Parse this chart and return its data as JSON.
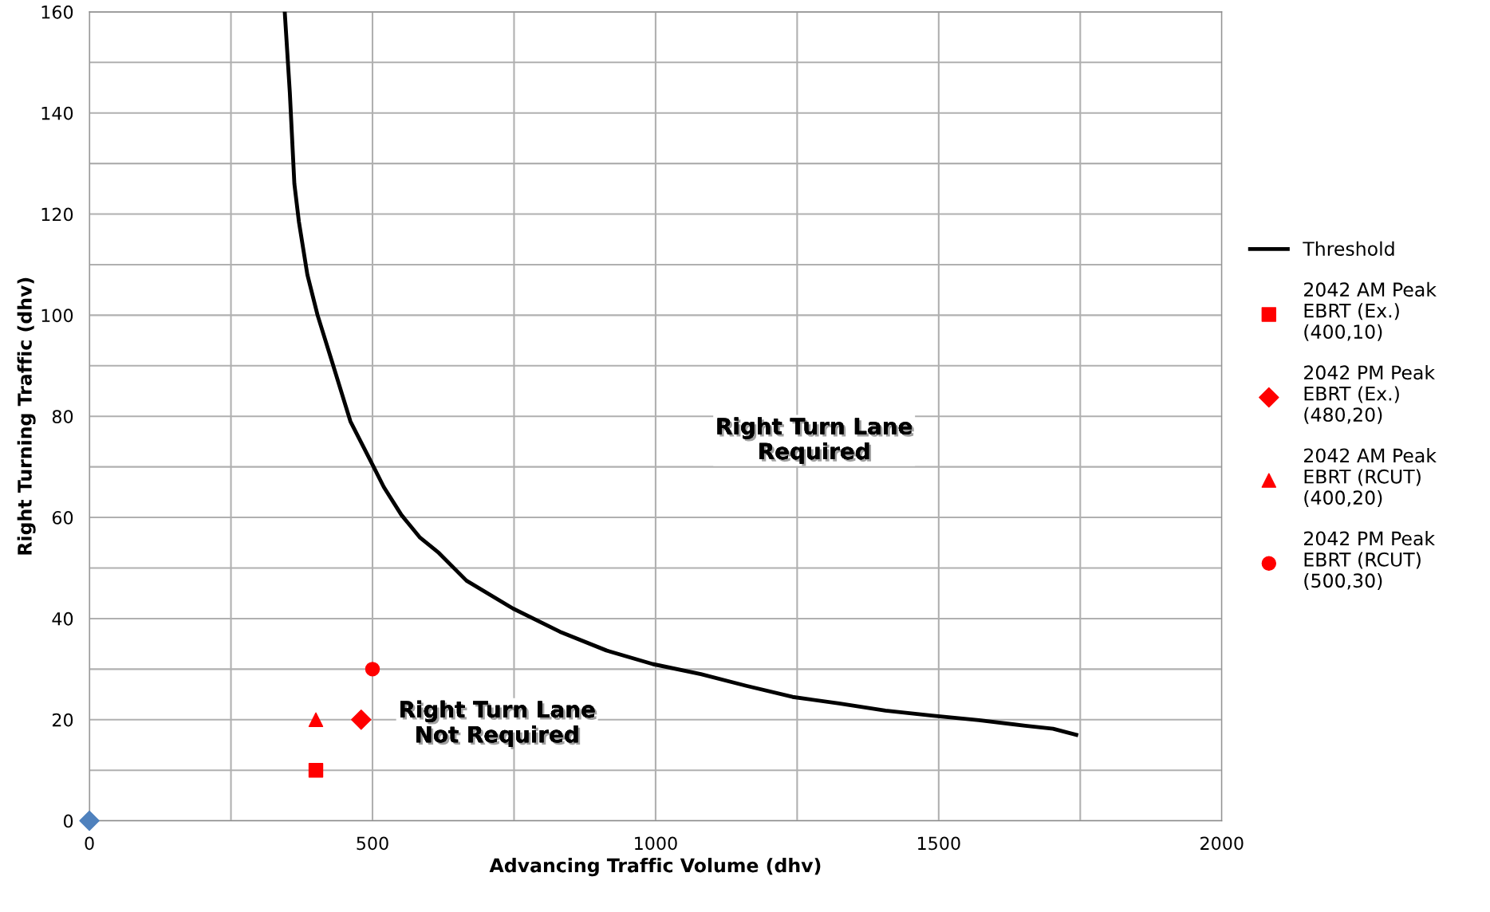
{
  "chart_data": {
    "type": "line",
    "xlabel": "Advancing Traffic Volume (dhv)",
    "ylabel": "Right Turning Traffic (dhv)",
    "xlim": [
      0,
      2000
    ],
    "ylim": [
      0,
      160
    ],
    "xticks": [
      0,
      {
        "value": 250,
        "label": null
      },
      500,
      {
        "value": 750,
        "label": null
      },
      1000,
      {
        "value": 1250,
        "label": null
      },
      1500,
      {
        "value": 1750,
        "label": null
      },
      2000
    ],
    "yticks": [
      0,
      {
        "value": 10,
        "label": null
      },
      20,
      {
        "value": 30,
        "label": null
      },
      40,
      {
        "value": 50,
        "label": null
      },
      60,
      {
        "value": 70,
        "label": null
      },
      80,
      {
        "value": 90,
        "label": null
      },
      100,
      {
        "value": 110,
        "label": null
      },
      120,
      {
        "value": 130,
        "label": null
      },
      140,
      {
        "value": 150,
        "label": null
      },
      160
    ],
    "grid": true,
    "legend": "right",
    "series": [
      {
        "name": "Threshold",
        "color": "#000000",
        "marker": "none",
        "line_style": "solid",
        "x": [
          345,
          354,
          362,
          370,
          385,
          403,
          428,
          461,
          502,
          520,
          551,
          584,
          617,
          666,
          748,
          831,
          913,
          995,
          1080,
          1160,
          1242,
          1324,
          1406,
          1488,
          1571,
          1653,
          1702,
          1743
        ],
        "values": [
          160,
          144,
          126,
          118.5,
          108,
          100,
          91,
          79,
          70,
          66,
          60.5,
          56,
          53,
          47.5,
          42,
          37.4,
          33.7,
          31,
          29,
          26.7,
          24.5,
          23.2,
          21.8,
          20.8,
          19.9,
          18.8,
          18.2,
          17
        ]
      },
      {
        "type": "scatter",
        "color": "#4f81bd",
        "marker": "diamond",
        "x": [
          0
        ],
        "values": [
          0
        ]
      },
      {
        "name": "2042 AM Peak\nEBRT (Ex.)\n(400,10)",
        "type": "scatter",
        "color": "#ff0000",
        "marker": "square",
        "x": [
          400
        ],
        "values": [
          10
        ]
      },
      {
        "name": "2042 PM Peak\nEBRT (Ex.)\n(480,20)",
        "type": "scatter",
        "color": "#ff0000",
        "marker": "diamond",
        "x": [
          480
        ],
        "values": [
          20
        ]
      },
      {
        "name": "2042 AM Peak\nEBRT (RCUT)\n(400,20)",
        "type": "scatter",
        "color": "#ff0000",
        "marker": "triangle",
        "x": [
          400
        ],
        "values": [
          20
        ]
      },
      {
        "name": "2042 PM Peak\nEBRT (RCUT)\n(500,30)",
        "type": "scatter",
        "color": "#ff0000",
        "marker": "circle",
        "x": [
          500
        ],
        "values": [
          30
        ]
      }
    ],
    "annotations": [
      "Right Turn Lane\nRequired",
      "Right Turn Lane\nNot Required"
    ]
  }
}
